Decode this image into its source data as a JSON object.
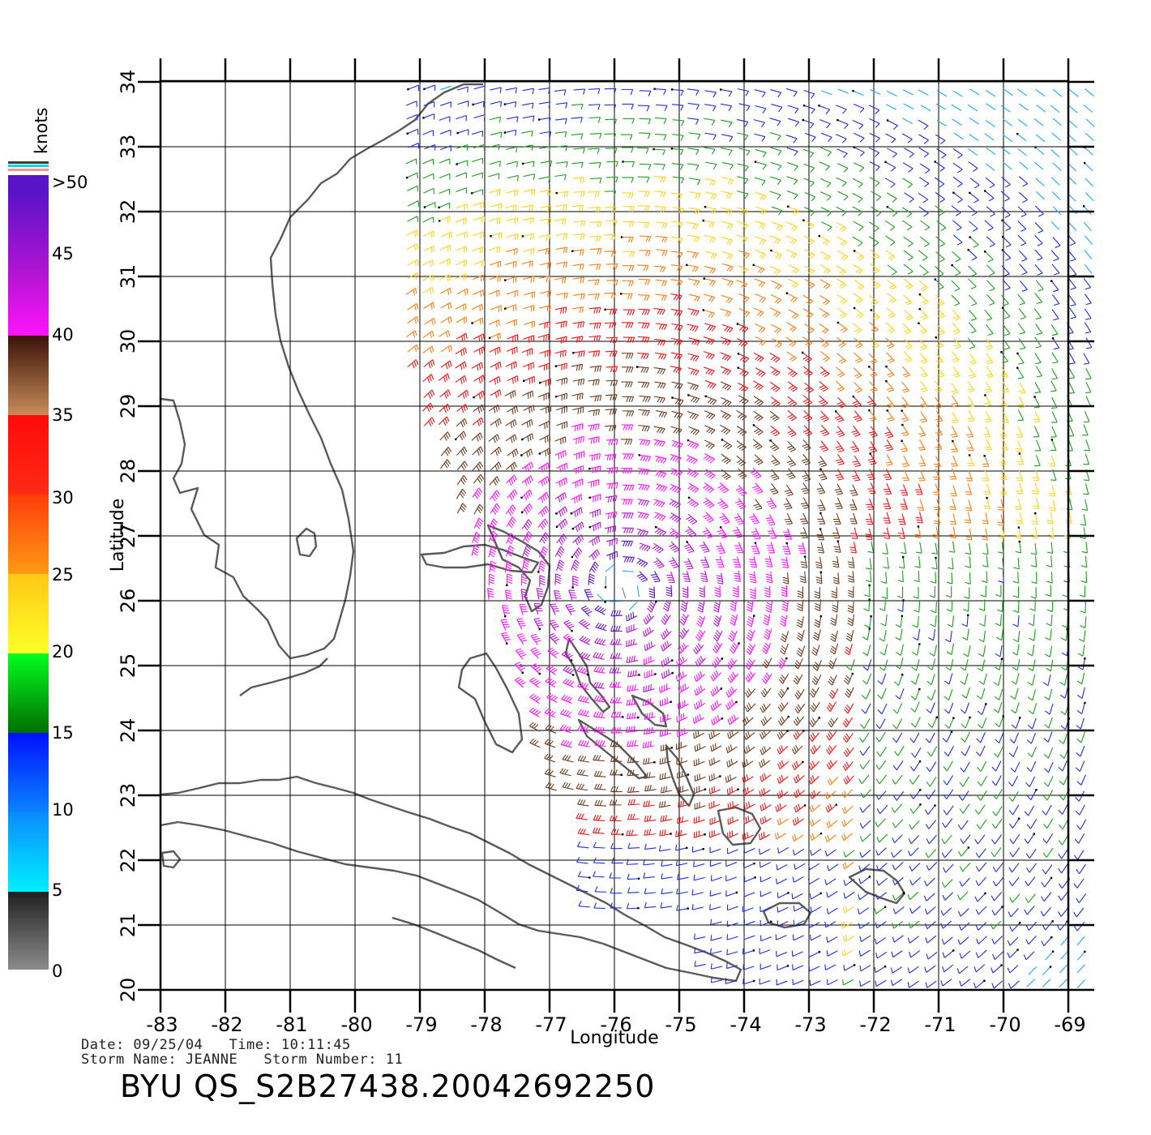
{
  "colorbar": {
    "title": "knots",
    "labels": [
      ">50",
      "45",
      "40",
      "35",
      "30",
      "25",
      "20",
      "15",
      "10",
      "5",
      "0"
    ]
  },
  "axes": {
    "xlabel": "Longitude",
    "ylabel": "Latitude",
    "lon_ticks": [
      "-83",
      "-82",
      "-81",
      "-80",
      "-79",
      "-78",
      "-77",
      "-76",
      "-75",
      "-74",
      "-73",
      "-72",
      "-71",
      "-70",
      "-69"
    ],
    "lat_ticks": [
      "20",
      "21",
      "22",
      "23",
      "24",
      "25",
      "26",
      "27",
      "28",
      "29",
      "30",
      "31",
      "32",
      "33",
      "34"
    ]
  },
  "footer": {
    "date_line": "Date: 09/25/04   Time: 10:11:45",
    "storm_line": "Storm Name: JEANNE   Storm Number: 11",
    "product_id": "BYU QS_S2B27438.20042692250"
  },
  "map": {
    "type": "QuikSCAT wind barb map",
    "lon_range": [
      -83,
      -68.6
    ],
    "lat_range": [
      20,
      34
    ],
    "storm_center": {
      "lon": -75.9,
      "lat": 26.2
    },
    "colors": {
      "coastline": "#5a5a5a",
      "grid": "#000000",
      "speed_0_5": "#808080",
      "speed_5_10": "#19a8ff",
      "speed_10_15": "#1c2fd6",
      "speed_15_20": "#1aa01a",
      "speed_20_25": "#ffd21e",
      "speed_25_30": "#ff7c14",
      "speed_30_35": "#f01414",
      "speed_35_40": "#6e3a1c",
      "speed_40_45": "#ff14ff",
      "speed_45_50": "#b414d2",
      "speed_gt_50": "#5a14c8"
    }
  }
}
